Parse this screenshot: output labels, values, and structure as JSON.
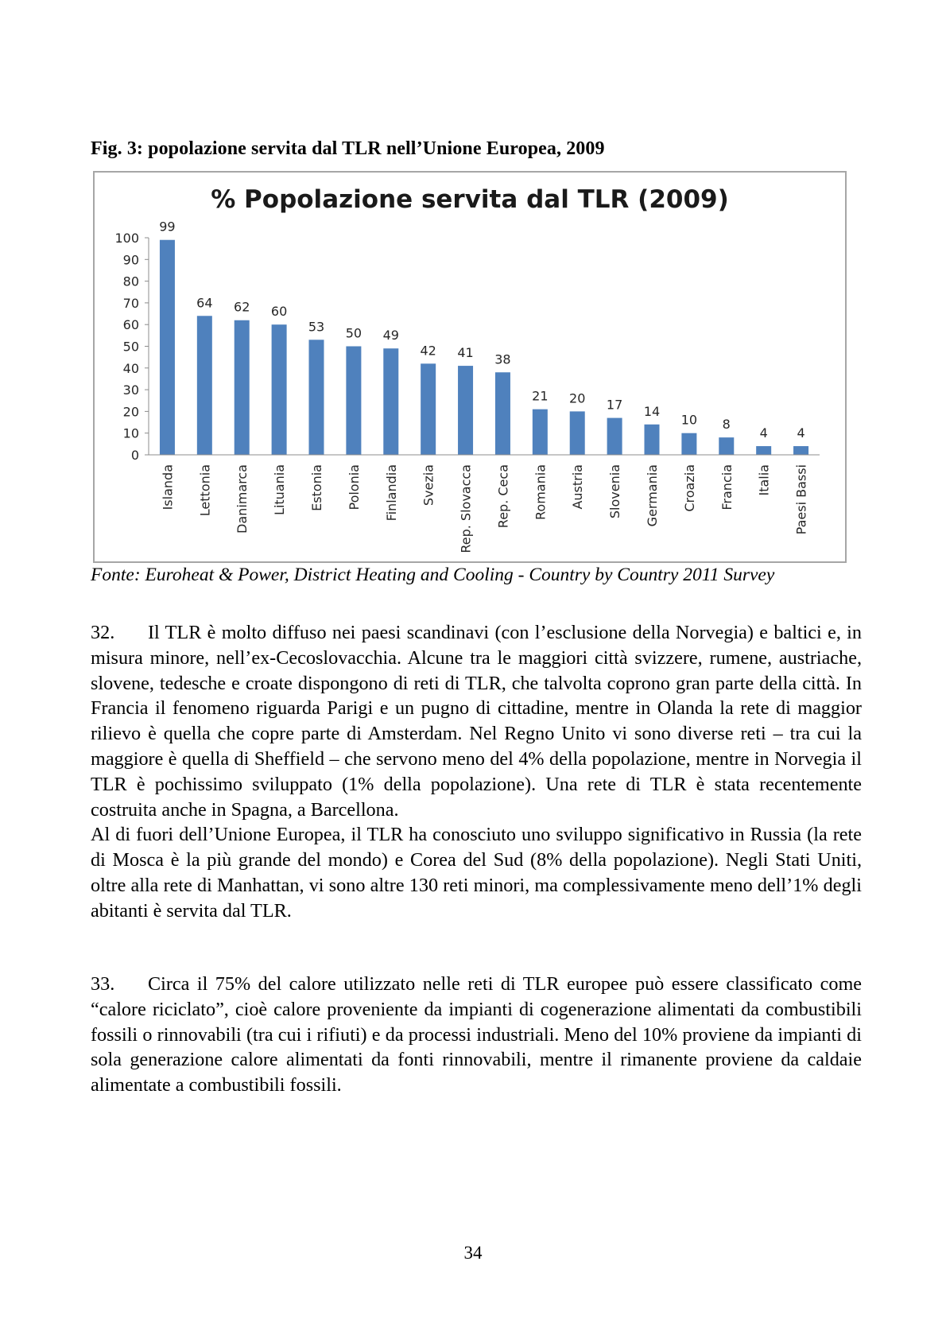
{
  "figure": {
    "caption": "Fig. 3: popolazione servita dal TLR nell’Unione Europea, 2009",
    "source": "Fonte: Euroheat & Power, District Heating and Cooling - Country by Country 2011 Survey"
  },
  "chart_data": {
    "type": "bar",
    "title": "% Popolazione servita dal TLR (2009)",
    "xlabel": "",
    "ylabel": "",
    "ylim": [
      0,
      100
    ],
    "yticks": [
      0,
      10,
      20,
      30,
      40,
      50,
      60,
      70,
      80,
      90,
      100
    ],
    "categories": [
      "Islanda",
      "Lettonia",
      "Danimarca",
      "Lituania",
      "Estonia",
      "Polonia",
      "Finlandia",
      "Svezia",
      "Rep. Slovacca",
      "Rep. Ceca",
      "Romania",
      "Austria",
      "Slovenia",
      "Germania",
      "Croazia",
      "Francia",
      "Italia",
      "Paesi Bassi"
    ],
    "values": [
      99,
      64,
      62,
      60,
      53,
      50,
      49,
      42,
      41,
      38,
      21,
      20,
      17,
      14,
      10,
      8,
      4,
      4
    ],
    "bar_color": "#4f81bd",
    "grid": false,
    "legend": "none",
    "data_labels": true
  },
  "paragraphs": [
    {
      "number": "32.",
      "text": "Il TLR è molto diffuso nei paesi scandinavi (con l’esclusione della Norvegia) e baltici e, in misura minore, nell’ex-Cecoslovacchia. Alcune tra le maggiori città svizzere, rumene, austriache, slovene, tedesche e croate dispongono di reti di TLR, che talvolta coprono gran parte della città. In Francia il fenomeno riguarda Parigi e un pugno di cittadine, mentre in Olanda la rete di maggior rilievo è quella che copre parte di Amsterdam. Nel Regno Unito vi sono diverse reti – tra cui la maggiore è quella di Sheffield – che servono meno del 4% della popolazione, mentre in Norvegia il TLR è pochissimo sviluppato (1% della popolazione). Una rete di TLR è stata recentemente costruita anche in Spagna, a Barcellona.",
      "continuation": "Al di fuori dell’Unione Europea, il TLR ha conosciuto uno sviluppo significativo in Russia (la rete di Mosca è la più grande del mondo) e Corea del Sud (8% della popolazione). Negli Stati Uniti, oltre alla rete di Manhattan, vi sono altre 130 reti minori, ma complessivamente meno dell’1% degli abitanti è servita dal TLR."
    },
    {
      "number": "33.",
      "text": "Circa il 75% del calore utilizzato nelle reti di TLR europee può essere classificato come “calore riciclato”, cioè calore proveniente da impianti di cogenerazione alimentati da combustibili fossili o rinnovabili (tra cui i rifiuti) e da processi industriali. Meno del 10% proviene da impianti di sola generazione calore alimentati da fonti rinnovabili, mentre il rimanente proviene da caldaie alimentate a combustibili fossili."
    }
  ],
  "page_number": "34"
}
